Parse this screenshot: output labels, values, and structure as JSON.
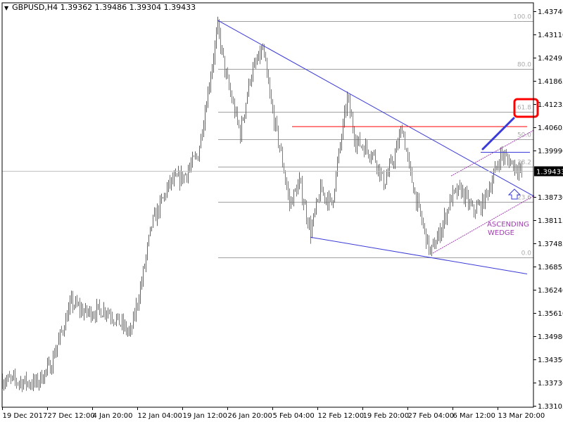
{
  "header": {
    "symbol": "GBPUSD,H4",
    "open": "1.39362",
    "high": "1.39486",
    "low": "1.39304",
    "close": "1.39433"
  },
  "chart_data": {
    "type": "ohlc-bar",
    "ylim": [
      1.33105,
      1.4374
    ],
    "y_ticks": [
      "1.43740",
      "1.43110",
      "1.42495",
      "1.41865",
      "1.41235",
      "1.40605",
      "1.39990",
      "1.39360",
      "1.38730",
      "1.38115",
      "1.37485",
      "1.36855",
      "1.36240",
      "1.35610",
      "1.34980",
      "1.34350",
      "1.33730",
      "1.33105"
    ],
    "x_ticks": [
      "19 Dec 2017",
      "27 Dec 12:00",
      "4 Jan 20:00",
      "12 Jan 04:00",
      "19 Jan 12:00",
      "26 Jan 20:00",
      "5 Feb 04:00",
      "12 Feb 12:00",
      "19 Feb 20:00",
      "27 Feb 04:00",
      "6 Mar 12:00",
      "13 Mar 20:00"
    ],
    "bars_per_x_tick": 32,
    "current_price": "1.39433",
    "price_path": [
      [
        0,
        1.3381
      ],
      [
        24,
        1.3371
      ],
      [
        34,
        1.3418
      ],
      [
        49,
        1.3589
      ],
      [
        59,
        1.3561
      ],
      [
        74,
        1.357
      ],
      [
        91,
        1.3504
      ],
      [
        99,
        1.3646
      ],
      [
        106,
        1.3798
      ],
      [
        119,
        1.3911
      ],
      [
        129,
        1.393
      ],
      [
        139,
        1.3987
      ],
      [
        146,
        1.4158
      ],
      [
        153,
        1.4328
      ],
      [
        159,
        1.4196
      ],
      [
        169,
        1.4044
      ],
      [
        176,
        1.4196
      ],
      [
        185,
        1.4272
      ],
      [
        191,
        1.412
      ],
      [
        199,
        1.3968
      ],
      [
        204,
        1.3854
      ],
      [
        211,
        1.3911
      ],
      [
        219,
        1.3779
      ],
      [
        226,
        1.3892
      ],
      [
        234,
        1.3854
      ],
      [
        239,
        1.3987
      ],
      [
        245,
        1.4139
      ],
      [
        251,
        1.4025
      ],
      [
        264,
        1.3987
      ],
      [
        271,
        1.3911
      ],
      [
        279,
        1.3987
      ],
      [
        284,
        1.4063
      ],
      [
        289,
        1.3949
      ],
      [
        296,
        1.3836
      ],
      [
        304,
        1.3722
      ],
      [
        311,
        1.3779
      ],
      [
        319,
        1.3873
      ],
      [
        326,
        1.3892
      ],
      [
        334,
        1.3836
      ],
      [
        341,
        1.3854
      ],
      [
        349,
        1.393
      ],
      [
        354,
        1.3987
      ],
      [
        361,
        1.3968
      ],
      [
        369,
        1.3943
      ]
    ],
    "up_color": "#2e7d5b",
    "down_color": "#f0501e",
    "fibonacci": {
      "levels": [
        {
          "label": "100.0",
          "price": 1.4347
        },
        {
          "label": "80.0",
          "price": 1.4218
        },
        {
          "label": "61.8",
          "price": 1.4103
        },
        {
          "label": "50.0",
          "price": 1.4029
        },
        {
          "label": "38.2",
          "price": 1.3955
        },
        {
          "label": "23.6",
          "price": 1.386
        },
        {
          "label": "0.0",
          "price": 1.371
        }
      ],
      "color": "#a0a0a0"
    },
    "trendlines": [
      {
        "name": "descending-upper-trendline",
        "from": [
          153,
          1.435
        ],
        "to": [
          378,
          1.3875
        ],
        "color": "#3a3ad8"
      },
      {
        "name": "descending-lower-trendline",
        "from": [
          219,
          1.3765
        ],
        "to": [
          373,
          1.3666
        ],
        "color": "#3a3ad8"
      },
      {
        "name": "wedge-upper-line",
        "from": [
          319,
          1.393
        ],
        "to": [
          378,
          1.4054
        ],
        "color": "#a040b0"
      },
      {
        "name": "wedge-lower-line",
        "from": [
          306,
          1.3722
        ],
        "to": [
          378,
          1.3877
        ],
        "color": "#a040b0"
      },
      {
        "name": "resistance-line",
        "from": [
          206,
          1.4063
        ],
        "to": [
          373,
          1.4063
        ],
        "color": "#ff0000"
      },
      {
        "name": "wedge-top-line",
        "from": [
          340,
          1.3994
        ],
        "to": [
          375,
          1.3994
        ],
        "color": "#3a3ad8"
      }
    ],
    "annotation": {
      "text1": "ASCENDING",
      "text2": "WEDGE",
      "color": "#a040b0"
    }
  }
}
